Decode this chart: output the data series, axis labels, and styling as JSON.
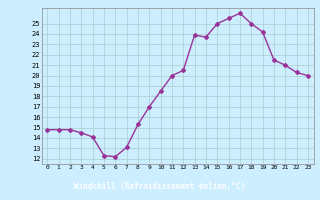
{
  "x": [
    0,
    1,
    2,
    3,
    4,
    5,
    6,
    7,
    8,
    9,
    10,
    11,
    12,
    13,
    14,
    15,
    16,
    17,
    18,
    19,
    20,
    21,
    22,
    23
  ],
  "y": [
    14.8,
    14.8,
    14.8,
    14.5,
    14.1,
    12.3,
    12.2,
    13.1,
    15.3,
    17.0,
    18.5,
    20.0,
    20.5,
    23.9,
    23.7,
    25.0,
    25.5,
    26.0,
    25.0,
    24.2,
    21.5,
    21.0,
    20.3,
    20.0
  ],
  "line_color": "#993399",
  "marker": "D",
  "marker_size": 2,
  "bg_color": "#cceeff",
  "grid_color": "#aacccc",
  "xlabel": "Windchill (Refroidissement éolien,°C)",
  "xlabel_color": "#ffffff",
  "xlabel_bg": "#663366",
  "ylabel_ticks": [
    12,
    13,
    14,
    15,
    16,
    17,
    18,
    19,
    20,
    21,
    22,
    23,
    24,
    25
  ],
  "ylim": [
    11.5,
    26.5
  ],
  "xlim": [
    -0.5,
    23.5
  ]
}
